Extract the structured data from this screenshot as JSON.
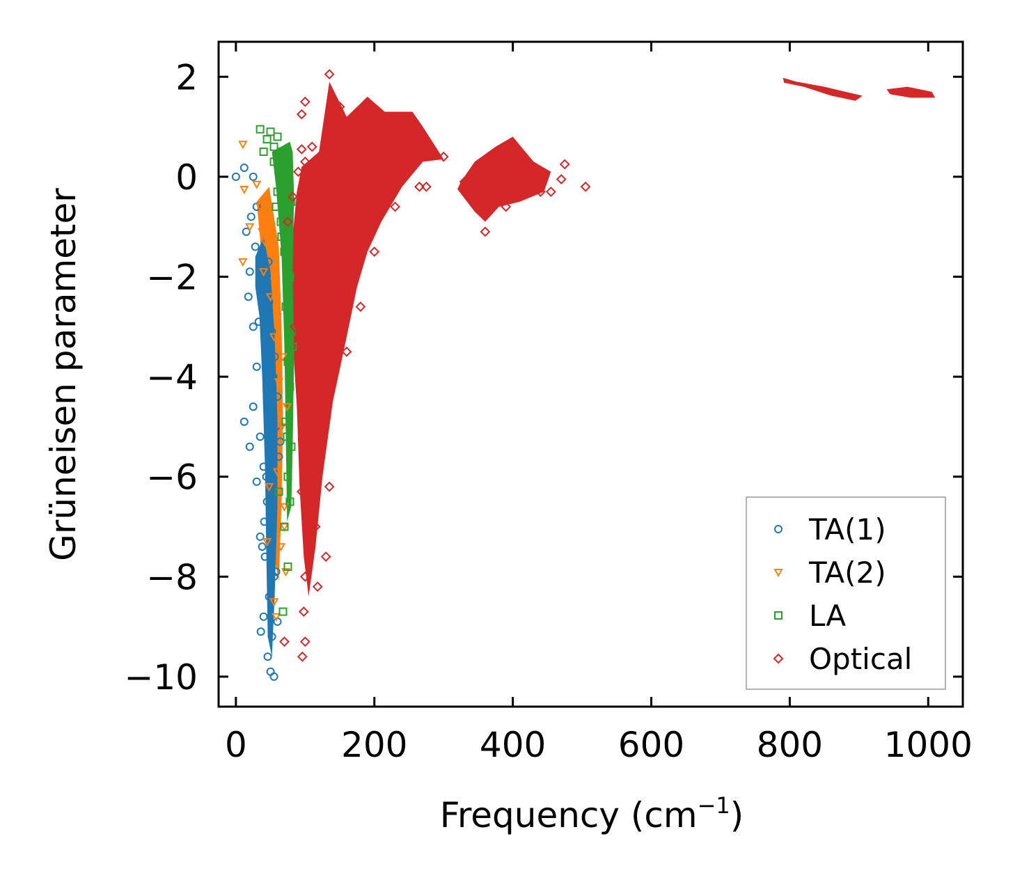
{
  "chart_data": {
    "type": "scatter",
    "title": "",
    "xlabel": "Frequency (cm",
    "xlabel_sup": "−1",
    "xlabel_close": ")",
    "ylabel": "Grüneisen parameter",
    "xlim": [
      -25,
      1050
    ],
    "ylim": [
      -10.6,
      2.7
    ],
    "xticks": [
      0,
      200,
      400,
      600,
      800,
      1000
    ],
    "xtick_labels": [
      "0",
      "200",
      "400",
      "600",
      "800",
      "1000"
    ],
    "yticks": [
      2,
      0,
      -2,
      -4,
      -6,
      -8,
      -10
    ],
    "ytick_labels": [
      "2",
      "0",
      "−2",
      "−4",
      "−6",
      "−8",
      "−10"
    ],
    "legend_position": "lower-right",
    "series": [
      {
        "name": "TA(1)",
        "marker": "circle",
        "color": "#1f77b4",
        "points": [
          [
            12,
            0.18
          ],
          [
            0,
            0
          ],
          [
            25,
            0
          ],
          [
            22,
            -0.8
          ],
          [
            30,
            -0.6
          ],
          [
            15,
            -1.1
          ],
          [
            28,
            -1.4
          ],
          [
            20,
            -1.9
          ],
          [
            35,
            -2.2
          ],
          [
            18,
            -2.4
          ],
          [
            40,
            -2.7
          ],
          [
            25,
            -3.0
          ],
          [
            45,
            -3.4
          ],
          [
            30,
            -3.8
          ],
          [
            50,
            -4.2
          ],
          [
            12,
            -4.9
          ],
          [
            25,
            -4.6
          ],
          [
            35,
            -5.2
          ],
          [
            20,
            -5.4
          ],
          [
            40,
            -5.8
          ],
          [
            30,
            -6.1
          ],
          [
            45,
            -6.5
          ],
          [
            50,
            -6.8
          ],
          [
            35,
            -7.2
          ],
          [
            42,
            -7.6
          ],
          [
            55,
            -8.0
          ],
          [
            48,
            -8.4
          ],
          [
            40,
            -8.8
          ],
          [
            52,
            -9.2
          ],
          [
            46,
            -9.6
          ],
          [
            50,
            -9.9
          ],
          [
            55,
            -10.0
          ],
          [
            38,
            -1.5
          ],
          [
            42,
            -2.0
          ],
          [
            48,
            -2.5
          ],
          [
            52,
            -3.1
          ],
          [
            56,
            -3.6
          ],
          [
            60,
            -4.4
          ],
          [
            58,
            -5.0
          ],
          [
            62,
            -5.6
          ],
          [
            44,
            -6.0
          ],
          [
            38,
            -7.4
          ],
          [
            58,
            -7.9
          ],
          [
            60,
            -8.9
          ],
          [
            36,
            -9.1
          ],
          [
            47,
            -1.7
          ],
          [
            33,
            -2.9
          ],
          [
            54,
            -4.0
          ],
          [
            64,
            -5.3
          ],
          [
            41,
            -6.9
          ]
        ]
      },
      {
        "name": "TA(2)",
        "marker": "triangle-down",
        "color": "#ff7f0e",
        "points": [
          [
            10,
            0.65
          ],
          [
            12,
            -0.25
          ],
          [
            30,
            -0.15
          ],
          [
            35,
            -0.6
          ],
          [
            20,
            -1.0
          ],
          [
            10,
            -1.7
          ],
          [
            40,
            -1.9
          ],
          [
            50,
            -2.4
          ],
          [
            60,
            -2.8
          ],
          [
            55,
            -3.2
          ],
          [
            62,
            -4.1
          ],
          [
            66,
            -5.0
          ],
          [
            60,
            -5.9
          ],
          [
            70,
            -6.6
          ],
          [
            65,
            -7.4
          ],
          [
            45,
            -7.3
          ],
          [
            72,
            -7.9
          ],
          [
            55,
            -8.5
          ],
          [
            58,
            -8.8
          ],
          [
            42,
            -1.3
          ],
          [
            68,
            -3.6
          ],
          [
            74,
            -4.6
          ],
          [
            48,
            -6.2
          ],
          [
            70,
            -7.0
          ],
          [
            38,
            -1.1
          ],
          [
            56,
            -2.1
          ]
        ]
      },
      {
        "name": "LA",
        "marker": "square",
        "color": "#2ca02c",
        "points": [
          [
            35,
            0.95
          ],
          [
            50,
            0.9
          ],
          [
            55,
            0.6
          ],
          [
            45,
            0.75
          ],
          [
            60,
            0.8
          ],
          [
            65,
            0.5
          ],
          [
            55,
            0.3
          ],
          [
            70,
            0.1
          ],
          [
            60,
            -0.3
          ],
          [
            80,
            -0.5
          ],
          [
            65,
            -0.9
          ],
          [
            70,
            -1.5
          ],
          [
            78,
            -2.0
          ],
          [
            72,
            -2.6
          ],
          [
            80,
            -3.1
          ],
          [
            75,
            -3.7
          ],
          [
            78,
            -4.2
          ],
          [
            72,
            -4.9
          ],
          [
            80,
            -5.4
          ],
          [
            75,
            -6.0
          ],
          [
            78,
            -6.5
          ],
          [
            70,
            -7.0
          ],
          [
            75,
            -7.8
          ],
          [
            68,
            -8.7
          ],
          [
            40,
            0.5
          ],
          [
            58,
            -0.6
          ],
          [
            66,
            -1.2
          ],
          [
            76,
            -2.4
          ],
          [
            82,
            -3.4
          ],
          [
            74,
            -5.2
          ],
          [
            62,
            -6.3
          ]
        ]
      },
      {
        "name": "Optical",
        "marker": "diamond",
        "color": "#d62728",
        "points": [
          [
            135,
            2.05
          ],
          [
            100,
            1.5
          ],
          [
            95,
            1.25
          ],
          [
            110,
            0.6
          ],
          [
            95,
            0.55
          ],
          [
            120,
            0.4
          ],
          [
            100,
            0.3
          ],
          [
            90,
            0.1
          ],
          [
            82,
            -0.4
          ],
          [
            75,
            -0.9
          ],
          [
            90,
            -1.5
          ],
          [
            100,
            -2.2
          ],
          [
            85,
            -3.0
          ],
          [
            95,
            -3.7
          ],
          [
            110,
            -4.3
          ],
          [
            125,
            -4.9
          ],
          [
            105,
            -5.6
          ],
          [
            95,
            -6.3
          ],
          [
            115,
            -7.0
          ],
          [
            130,
            -7.6
          ],
          [
            100,
            -8.0
          ],
          [
            98,
            -8.7
          ],
          [
            100,
            -9.3
          ],
          [
            96,
            -9.6
          ],
          [
            70,
            -9.3
          ],
          [
            160,
            -3.5
          ],
          [
            180,
            -2.6
          ],
          [
            200,
            -1.5
          ],
          [
            230,
            -0.6
          ],
          [
            265,
            -0.2
          ],
          [
            275,
            -0.2
          ],
          [
            330,
            -0.1
          ],
          [
            360,
            -1.1
          ],
          [
            390,
            -0.6
          ],
          [
            440,
            -0.3
          ],
          [
            455,
            -0.3
          ],
          [
            470,
            -0.05
          ],
          [
            475,
            0.25
          ],
          [
            505,
            -0.2
          ],
          [
            150,
            1.4
          ],
          [
            190,
            1.5
          ],
          [
            220,
            1.1
          ],
          [
            260,
            1.0
          ],
          [
            300,
            0.4
          ],
          [
            140,
            -1.5
          ],
          [
            170,
            -0.8
          ],
          [
            120,
            -2.6
          ],
          [
            110,
            -3.3
          ],
          [
            135,
            -6.2
          ],
          [
            118,
            -8.2
          ]
        ]
      }
    ]
  }
}
